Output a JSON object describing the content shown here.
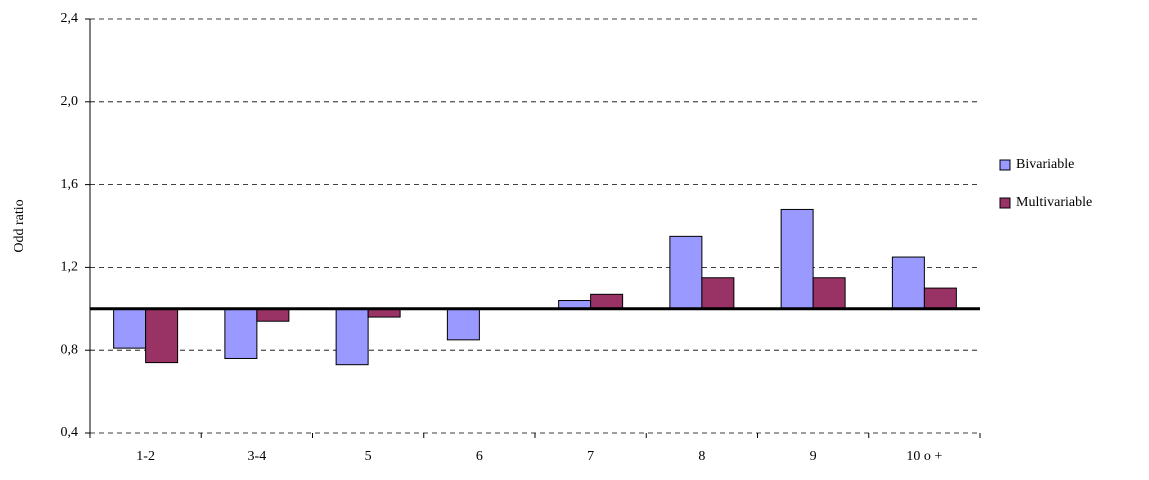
{
  "chart_data": {
    "type": "bar",
    "y_label": "Odd ratio",
    "categories": [
      "1-2",
      "3-4",
      "5",
      "6",
      "7",
      "8",
      "9",
      "10 o +"
    ],
    "series": [
      {
        "name": "Bivariable",
        "color": "#9999ff",
        "values": [
          0.81,
          0.76,
          0.73,
          0.85,
          1.04,
          1.35,
          1.48,
          1.25
        ]
      },
      {
        "name": "Multivariable",
        "color": "#993366",
        "values": [
          0.74,
          0.94,
          0.96,
          null,
          1.07,
          1.15,
          1.15,
          1.1
        ]
      }
    ],
    "reference_line": 1,
    "ylim": [
      0.4,
      2.4
    ],
    "yticks": [
      {
        "value": 0.4,
        "label": "0,4"
      },
      {
        "value": 0.8,
        "label": "0,8"
      },
      {
        "value": 1.2,
        "label": "1,2"
      },
      {
        "value": 1.6,
        "label": "1,6"
      },
      {
        "value": 2.0,
        "label": "2,0"
      },
      {
        "value": 2.4,
        "label": "2,4"
      }
    ],
    "grid": true,
    "legend": "right"
  }
}
